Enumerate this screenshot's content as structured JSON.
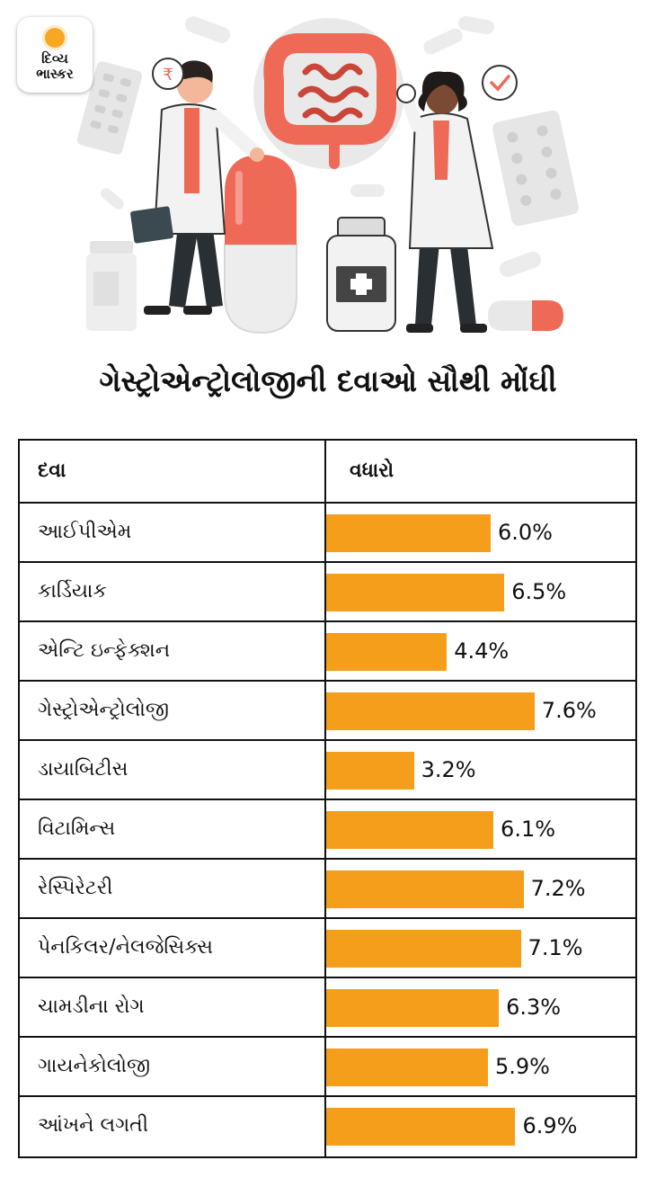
{
  "brand": {
    "logo_line1": "દિવ્ય",
    "logo_line2": "ભાસ્કર"
  },
  "colors": {
    "bar": "#f59e1b",
    "accent_red": "#ee6a57",
    "coat": "#e8e8e8",
    "outline": "#111111"
  },
  "illustration": {
    "description_icons": [
      "doctor-man-icon",
      "doctor-woman-icon",
      "intestine-icon",
      "pill-capsule-icon",
      "medicine-bottle-icon",
      "tablet-strip-icon"
    ]
  },
  "chart_data": {
    "type": "bar",
    "title": "ગેસ્ટ્રોએન્ટ્રોલોજીની દવાઓ સૌથી મોંઘી",
    "column_left": "દવા",
    "column_right": "વધારો",
    "categories": [
      "આઈપીએમ",
      "કાર્ડિયાક",
      "એન્ટિ ઇન્ફેક્શન",
      "ગેસ્ટ્રોએન્ટ્રોલોજી",
      "ડાયાબિટીસ",
      "વિટામિન્સ",
      "રેસ્પિરેટરી",
      "પેનકિલર/નેલજેસિક્સ",
      "ચામડીના રોગ",
      "ગાયનેકોલોજી",
      "આંખને લગતી"
    ],
    "values": [
      6.0,
      6.5,
      4.4,
      7.6,
      3.2,
      6.1,
      7.2,
      7.1,
      6.3,
      5.9,
      6.9
    ],
    "value_labels": [
      "6.0%",
      "6.5%",
      "4.4%",
      "7.6%",
      "3.2%",
      "6.1%",
      "7.2%",
      "7.1%",
      "6.3%",
      "5.9%",
      "6.9%"
    ],
    "unit": "%",
    "orientation": "horizontal"
  }
}
